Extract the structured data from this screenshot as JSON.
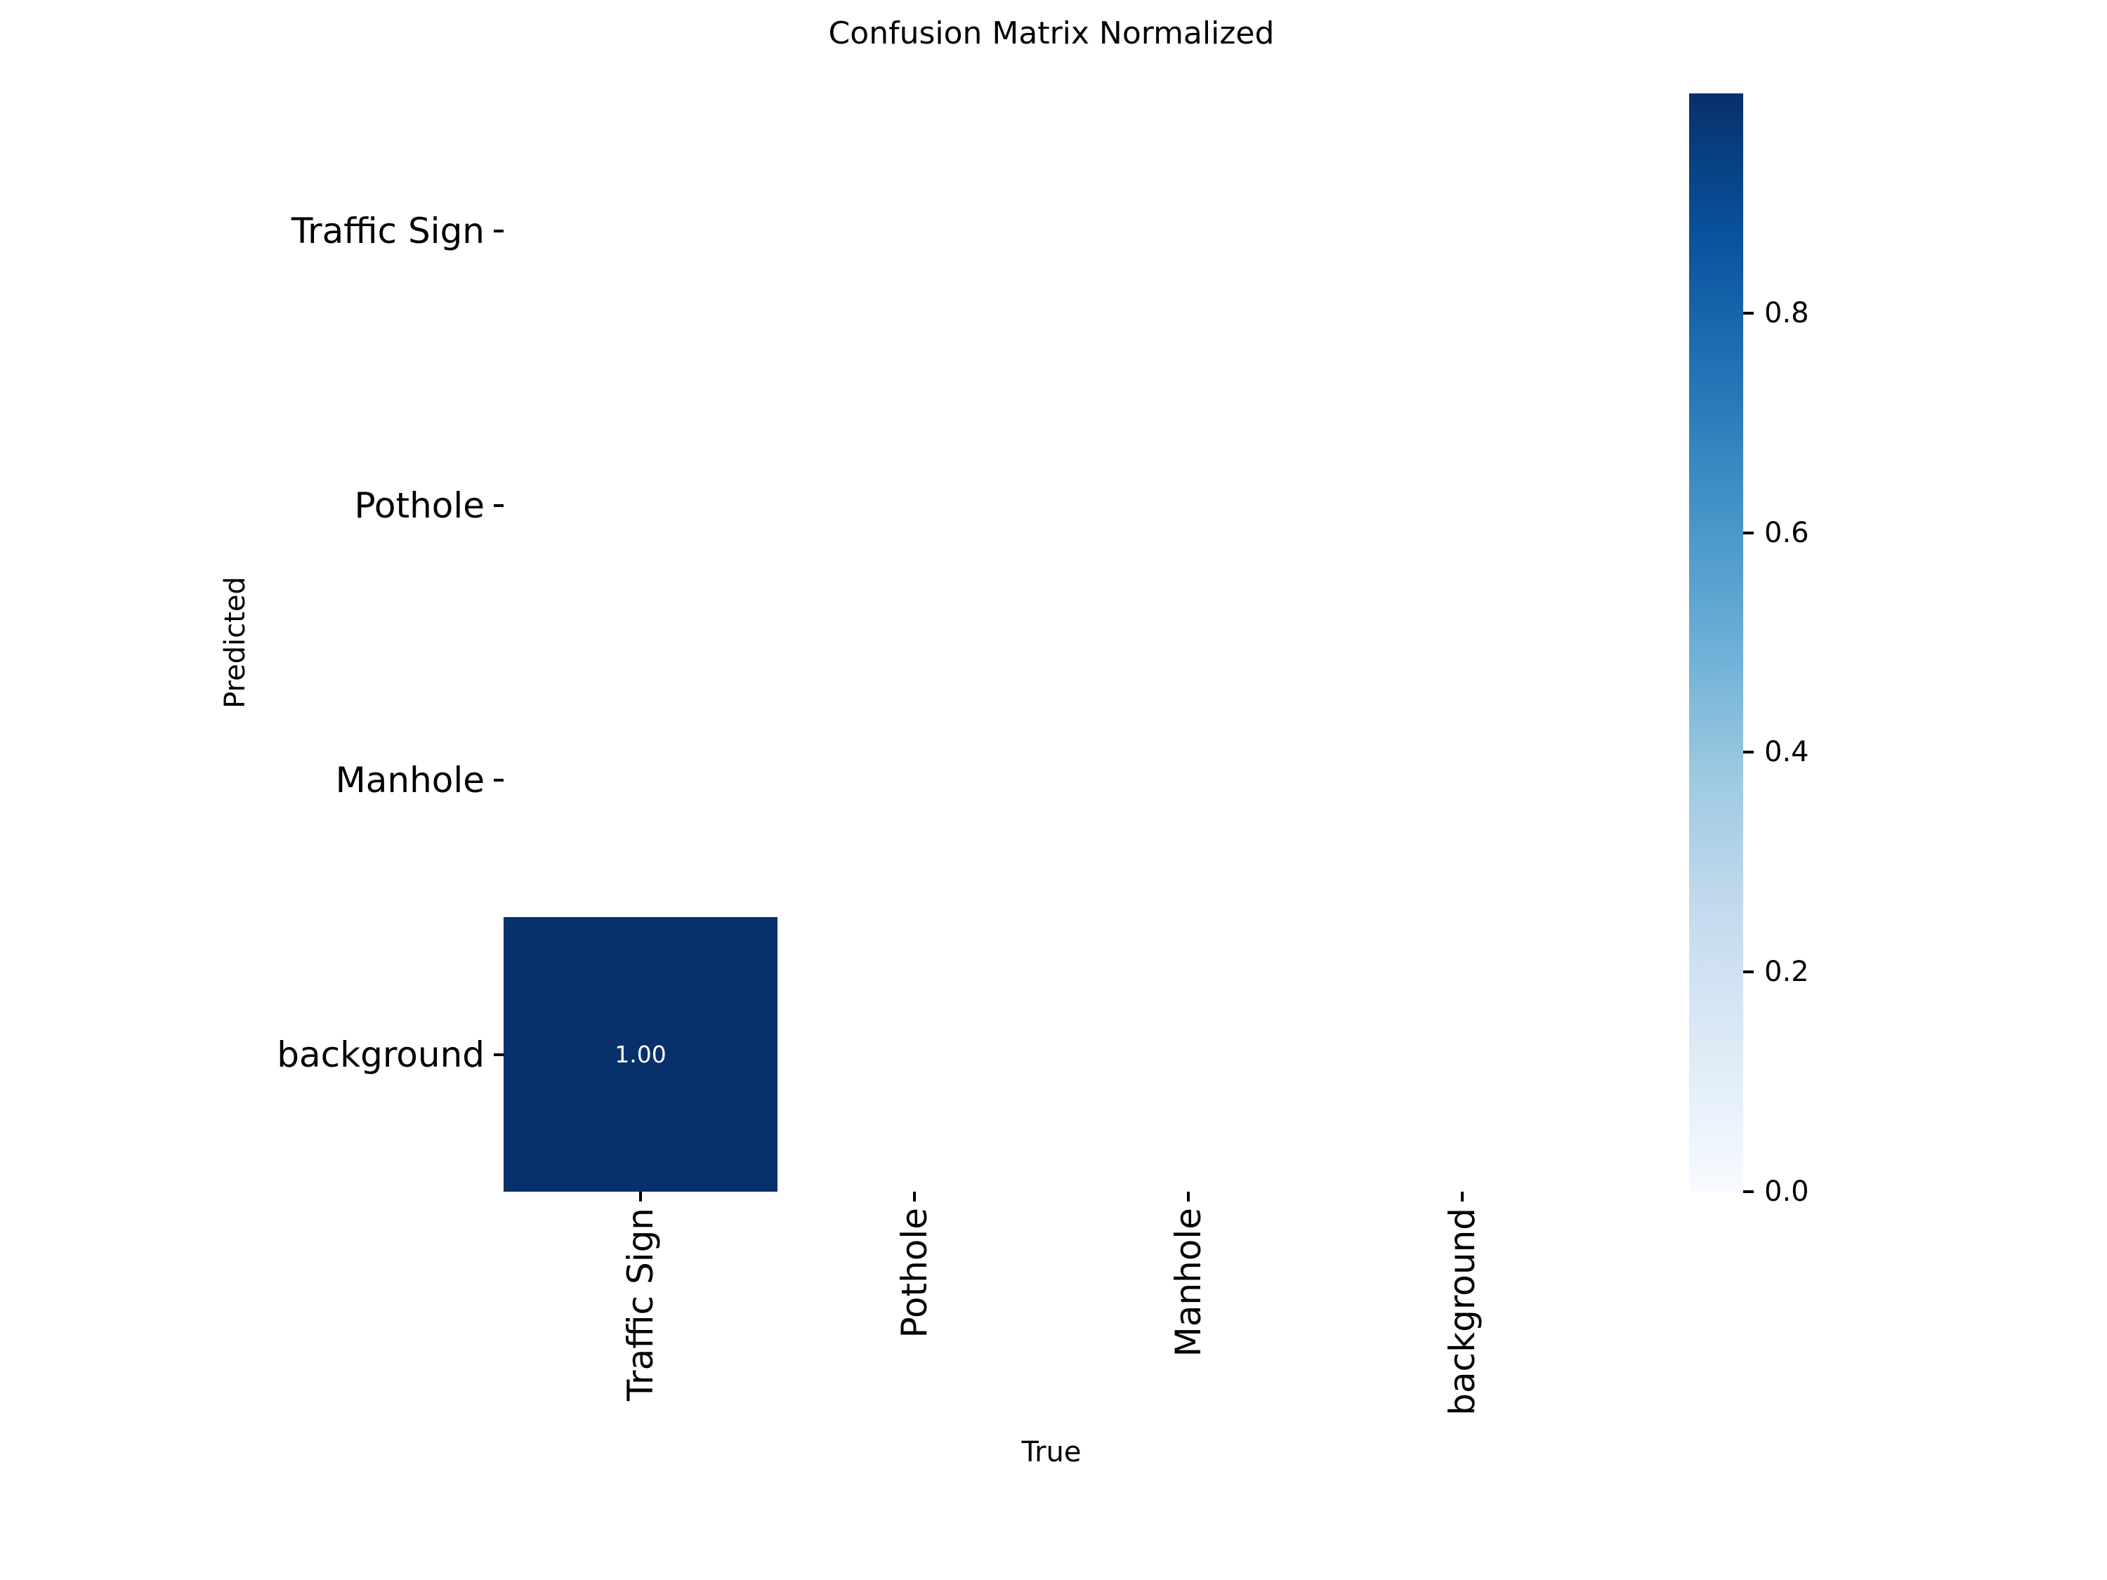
{
  "chart_data": {
    "type": "heatmap",
    "title": "Confusion Matrix Normalized",
    "xlabel": "True",
    "ylabel": "Predicted",
    "x_categories": [
      "Traffic Sign",
      "Pothole",
      "Manhole",
      "background"
    ],
    "y_categories": [
      "Traffic Sign",
      "Pothole",
      "Manhole",
      "background"
    ],
    "cells": [
      {
        "row": "background",
        "col": "Traffic Sign",
        "value": 1.0,
        "label": "1.00"
      }
    ],
    "empty_cell_color": "#ffffff",
    "annotation_color": "#ffffff",
    "colormap": "Blues",
    "colormap_stops": [
      "#f7fbff",
      "#deebf7",
      "#c6dbef",
      "#9ecae1",
      "#6baed6",
      "#4292c6",
      "#2171b5",
      "#08519c",
      "#08306b"
    ],
    "colorbar_ticks": [
      0.0,
      0.2,
      0.4,
      0.6,
      0.8
    ],
    "colorbar_range": [
      0.0,
      1.0
    ],
    "legend_position": "right",
    "grid": false
  }
}
